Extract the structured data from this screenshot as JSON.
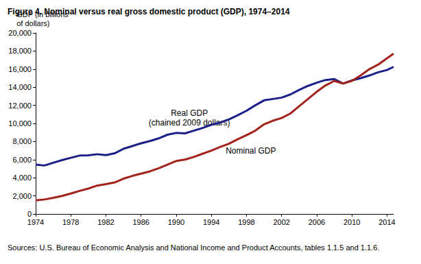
{
  "chart_data": {
    "type": "line",
    "title": "Figure 4. Nominal versus real gross domestic product (GDP), 1974–2014",
    "y_label": "GDP (in billions\nof dollars)",
    "source": "Sources: U.S. Bureau of Economic Analysis and National Income and Product Accounts, tables 1.1.5 and 1.1.6.",
    "x": [
      1974,
      1975,
      1976,
      1977,
      1978,
      1979,
      1980,
      1981,
      1982,
      1983,
      1984,
      1985,
      1986,
      1987,
      1988,
      1989,
      1990,
      1991,
      1992,
      1993,
      1994,
      1995,
      1996,
      1997,
      1998,
      1999,
      2000,
      2001,
      2002,
      2003,
      2004,
      2005,
      2006,
      2007,
      2008,
      2009,
      2010,
      2011,
      2012,
      2013,
      2014,
      2014.75
    ],
    "series": [
      {
        "name": "Real GDP",
        "color": "#1c1f8a",
        "values": [
          5450,
          5350,
          5650,
          5950,
          6200,
          6450,
          6480,
          6600,
          6500,
          6700,
          7200,
          7500,
          7800,
          8050,
          8350,
          8750,
          8950,
          8900,
          9200,
          9500,
          9850,
          10100,
          10450,
          10900,
          11400,
          12000,
          12550,
          12700,
          12850,
          13200,
          13700,
          14150,
          14500,
          14800,
          14900,
          14400,
          14750,
          15000,
          15300,
          15650,
          15900,
          16250
        ]
      },
      {
        "name": "Nominal GDP",
        "color": "#a3221c",
        "values": [
          1500,
          1600,
          1780,
          1990,
          2250,
          2550,
          2800,
          3130,
          3300,
          3480,
          3900,
          4200,
          4450,
          4700,
          5050,
          5450,
          5850,
          6000,
          6300,
          6650,
          7000,
          7400,
          7750,
          8250,
          8700,
          9200,
          9900,
          10300,
          10600,
          11100,
          11900,
          12700,
          13500,
          14200,
          14700,
          14400,
          14700,
          15300,
          16000,
          16500,
          17200,
          17700
        ]
      }
    ],
    "annotations": [
      {
        "text": "Real GDP\n(chained 2009 dollars)",
        "x": 1991.5,
        "y": 10600
      },
      {
        "text": "Nominal GDP",
        "x": 1998.5,
        "y": 7000
      }
    ],
    "xlim": [
      1974,
      2014.75
    ],
    "xticks": [
      1974,
      1978,
      1982,
      1986,
      1990,
      1994,
      1998,
      2002,
      2006,
      2010,
      2014
    ],
    "ylim": [
      0,
      20000
    ],
    "yticks": [
      0,
      {
        "value": 2000,
        "label": "2,000"
      },
      {
        "value": 4000,
        "label": "4,000"
      },
      {
        "value": 6000,
        "label": "6,000"
      },
      {
        "value": 8000,
        "label": "8,000"
      },
      {
        "value": 10000,
        "label": "10,000"
      },
      {
        "value": 12000,
        "label": "12,000"
      },
      {
        "value": 14000,
        "label": "14,000"
      },
      {
        "value": 16000,
        "label": "16,000"
      },
      {
        "value": 18000,
        "label": "18,000"
      },
      {
        "value": 20000,
        "label": "20,000"
      }
    ],
    "grid": false
  }
}
